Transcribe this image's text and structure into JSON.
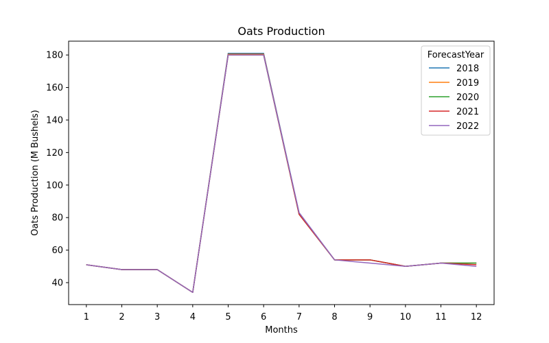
{
  "chart_data": {
    "type": "line",
    "title": "Oats Production",
    "xlabel": "Months",
    "ylabel": "Oats Production (M Bushels)",
    "x": [
      1,
      2,
      3,
      4,
      5,
      6,
      7,
      8,
      9,
      10,
      11,
      12
    ],
    "xlim": [
      0.5,
      12.5
    ],
    "ylim": [
      26.5,
      188.5
    ],
    "yticks": [
      40,
      60,
      80,
      100,
      120,
      140,
      160,
      180
    ],
    "grid": false,
    "legend": {
      "title": "ForecastYear",
      "position": "top-right"
    },
    "series": [
      {
        "name": "2018",
        "color": "#1f77b4",
        "values": [
          51,
          48,
          48,
          34,
          181,
          181,
          83,
          54,
          54,
          50,
          52,
          52
        ]
      },
      {
        "name": "2019",
        "color": "#ff7f0e",
        "values": [
          51,
          48,
          48,
          34,
          180.5,
          180.5,
          82.5,
          54,
          54,
          50,
          52,
          52
        ]
      },
      {
        "name": "2020",
        "color": "#2ca02c",
        "values": [
          51,
          48,
          48,
          34,
          180,
          180,
          82,
          54,
          54,
          50,
          52,
          52
        ]
      },
      {
        "name": "2021",
        "color": "#d62728",
        "values": [
          51,
          48,
          48,
          34,
          180,
          180,
          82,
          54,
          54,
          50,
          52,
          51
        ]
      },
      {
        "name": "2022",
        "color": "#9467bd",
        "values": [
          51,
          48,
          48,
          34,
          180,
          180,
          83,
          54,
          52,
          50,
          52,
          50
        ]
      }
    ]
  }
}
